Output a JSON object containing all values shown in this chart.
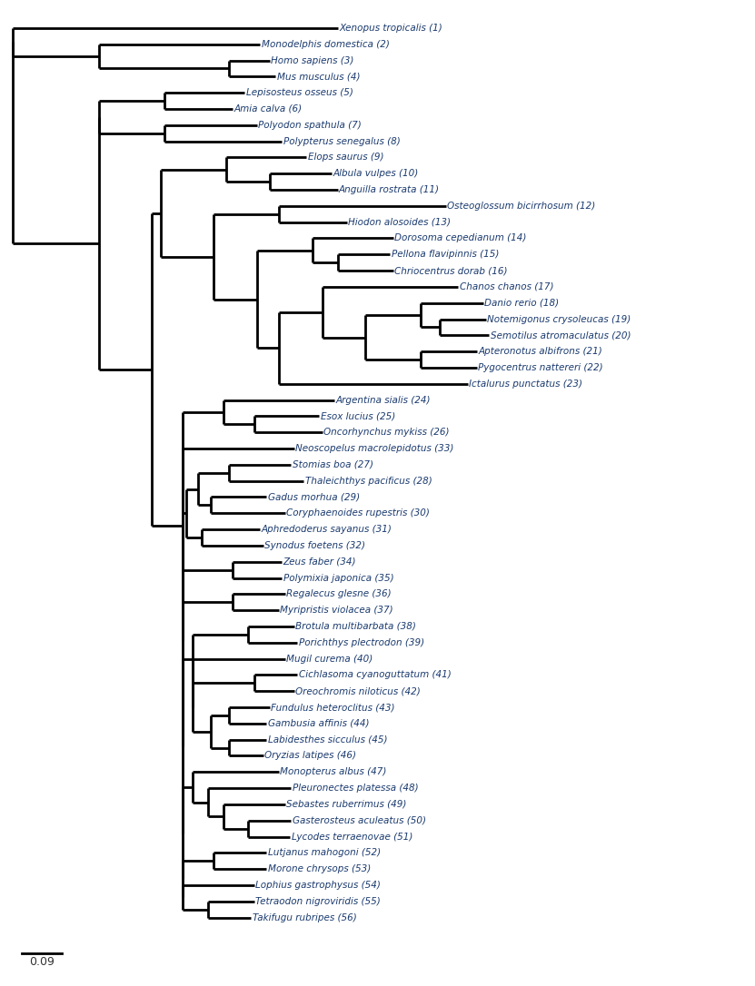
{
  "taxa": [
    "Xenopus tropicalis (1)",
    "Monodelphis domestica (2)",
    "Homo sapiens (3)",
    "Mus musculus (4)",
    "Lepisosteus osseus (5)",
    "Amia calva (6)",
    "Polyodon spathula (7)",
    "Polypterus senegalus (8)",
    "Elops saurus (9)",
    "Albula vulpes (10)",
    "Anguilla rostrata (11)",
    "Osteoglossum bicirrhosum (12)",
    "Hiodon alosoides (13)",
    "Dorosoma cepedianum (14)",
    "Pellona flavipinnis (15)",
    "Chriocentrus dorab (16)",
    "Chanos chanos (17)",
    "Danio rerio (18)",
    "Notemigonus crysoleucas (19)",
    "Semotilus atromaculatus (20)",
    "Apteronotus albifrons (21)",
    "Pygocentrus nattereri (22)",
    "Ictalurus punctatus (23)",
    "Argentina sialis (24)",
    "Esox lucius (25)",
    "Oncorhynchus mykiss (26)",
    "Stomias boa (27)",
    "Thaleichthys pacificus (28)",
    "Gadus morhua (29)",
    "Coryphaenoides rupestris (30)",
    "Aphredoderus sayanus (31)",
    "Synodus foetens (32)",
    "Neoscopelus macrolepidotus (33)",
    "Zeus faber (34)",
    "Polymixia japonica (35)",
    "Regalecus glesne (36)",
    "Myripristis violacea (37)",
    "Brotula multibarbata (38)",
    "Porichthys plectrodon (39)",
    "Mugil curema (40)",
    "Cichlasoma cyanoguttatum (41)",
    "Oreochromis niloticus (42)",
    "Fundulus heteroclitus (43)",
    "Gambusia affinis (44)",
    "Labidesthes sicculus (45)",
    "Oryzias latipes (46)",
    "Monopterus albus (47)",
    "Pleuronectes platessa (48)",
    "Sebastes ruberrimus (49)",
    "Gasterosteus aculeatus (50)",
    "Lycodes terraenovae (51)",
    "Lutjanus mahogoni (52)",
    "Morone chrysops (53)",
    "Lophius gastrophysus (54)",
    "Tetraodon nigroviridis (55)",
    "Takifugu rubripes (56)"
  ],
  "line_color": "#000000",
  "text_color": "#1a3a6e",
  "scale_label": "0.09",
  "scale_value": 0.09,
  "figsize": [
    8.31,
    10.86
  ],
  "dpi": 100
}
